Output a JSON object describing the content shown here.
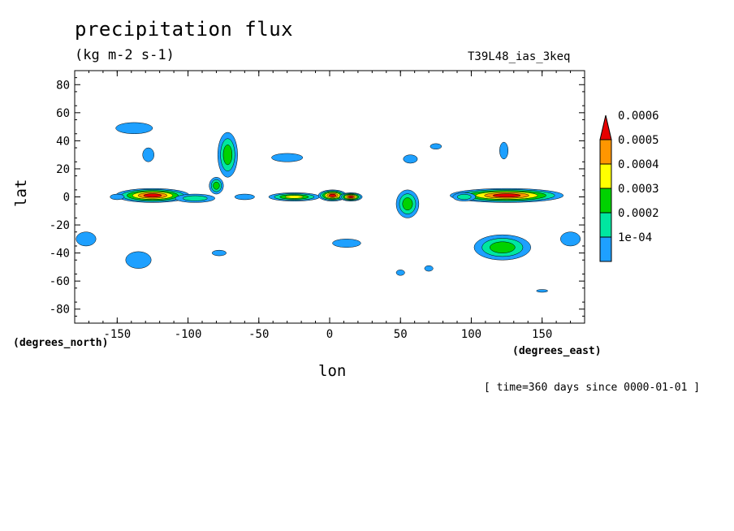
{
  "chart_data": {
    "type": "heatmap",
    "title": "precipitation flux",
    "subtitle": "(kg m-2 s-1)",
    "dataset_label": "T39L48_ias_3keq",
    "xlabel": "lon",
    "ylabel": "lat",
    "x_units": "(degrees_east)",
    "y_units": "(degrees_north)",
    "time_note": "[ time=360 days since 0000-01-01 ]",
    "xlim": [
      -180,
      180
    ],
    "ylim": [
      -90,
      90
    ],
    "x_ticks": [
      -150,
      -100,
      -50,
      0,
      50,
      100,
      150
    ],
    "y_ticks": [
      -80,
      -60,
      -40,
      -20,
      0,
      20,
      40,
      60,
      80
    ],
    "x_tick_labels": [
      "-150",
      "-100",
      "-50",
      "0",
      "50",
      "100",
      "150"
    ],
    "y_tick_labels": [
      "-80",
      "-60",
      "-40",
      "-20",
      "0",
      "20",
      "40",
      "60",
      "80"
    ],
    "colorbar": {
      "levels": [
        0.0001,
        0.0002,
        0.0003,
        0.0004,
        0.0005,
        0.0006
      ],
      "labels": [
        "1e-04",
        "0.0002",
        "0.0003",
        "0.0004",
        "0.0005",
        "0.0006"
      ],
      "colors": [
        "#1ea0ff",
        "#00e6a0",
        "#00d200",
        "#ffff00",
        "#ff9600",
        "#e60000"
      ],
      "extend": "max"
    },
    "features": [
      {
        "lon": -125,
        "lat": 1,
        "rx": 26,
        "ry": 5,
        "level": 6
      },
      {
        "lon": -95,
        "lat": -1,
        "rx": 14,
        "ry": 3,
        "level": 2
      },
      {
        "lon": -80,
        "lat": 8,
        "rx": 5,
        "ry": 6,
        "level": 3
      },
      {
        "lon": -72,
        "lat": 30,
        "rx": 7,
        "ry": 16,
        "level": 3
      },
      {
        "lon": -138,
        "lat": 49,
        "rx": 13,
        "ry": 4,
        "level": 1
      },
      {
        "lon": -128,
        "lat": 30,
        "rx": 4,
        "ry": 5,
        "level": 1
      },
      {
        "lon": -150,
        "lat": 0,
        "rx": 5,
        "ry": 2,
        "level": 1
      },
      {
        "lon": -135,
        "lat": -45,
        "rx": 9,
        "ry": 6,
        "level": 1
      },
      {
        "lon": -172,
        "lat": -30,
        "rx": 7,
        "ry": 5,
        "level": 1
      },
      {
        "lon": -78,
        "lat": -40,
        "rx": 5,
        "ry": 2,
        "level": 1
      },
      {
        "lon": -60,
        "lat": 0,
        "rx": 7,
        "ry": 2,
        "level": 1
      },
      {
        "lon": -25,
        "lat": 0,
        "rx": 18,
        "ry": 3,
        "level": 4
      },
      {
        "lon": 2,
        "lat": 1,
        "rx": 10,
        "ry": 4,
        "level": 6
      },
      {
        "lon": 15,
        "lat": 0,
        "rx": 8,
        "ry": 3,
        "level": 6
      },
      {
        "lon": -30,
        "lat": 28,
        "rx": 11,
        "ry": 3,
        "level": 1
      },
      {
        "lon": 12,
        "lat": -33,
        "rx": 10,
        "ry": 3,
        "level": 1
      },
      {
        "lon": 55,
        "lat": -5,
        "rx": 8,
        "ry": 10,
        "level": 3
      },
      {
        "lon": 57,
        "lat": 27,
        "rx": 5,
        "ry": 3,
        "level": 1
      },
      {
        "lon": 75,
        "lat": 36,
        "rx": 4,
        "ry": 2,
        "level": 1
      },
      {
        "lon": 50,
        "lat": -54,
        "rx": 3,
        "ry": 2,
        "level": 1
      },
      {
        "lon": 70,
        "lat": -51,
        "rx": 3,
        "ry": 2,
        "level": 1
      },
      {
        "lon": 125,
        "lat": 1,
        "rx": 40,
        "ry": 5,
        "level": 6
      },
      {
        "lon": 122,
        "lat": -36,
        "rx": 20,
        "ry": 9,
        "level": 3
      },
      {
        "lon": 123,
        "lat": 33,
        "rx": 3,
        "ry": 6,
        "level": 1
      },
      {
        "lon": 170,
        "lat": -30,
        "rx": 7,
        "ry": 5,
        "level": 1
      },
      {
        "lon": 150,
        "lat": -67,
        "rx": 4,
        "ry": 1,
        "level": 1
      },
      {
        "lon": 95,
        "lat": 0,
        "rx": 8,
        "ry": 3,
        "level": 2
      }
    ]
  }
}
